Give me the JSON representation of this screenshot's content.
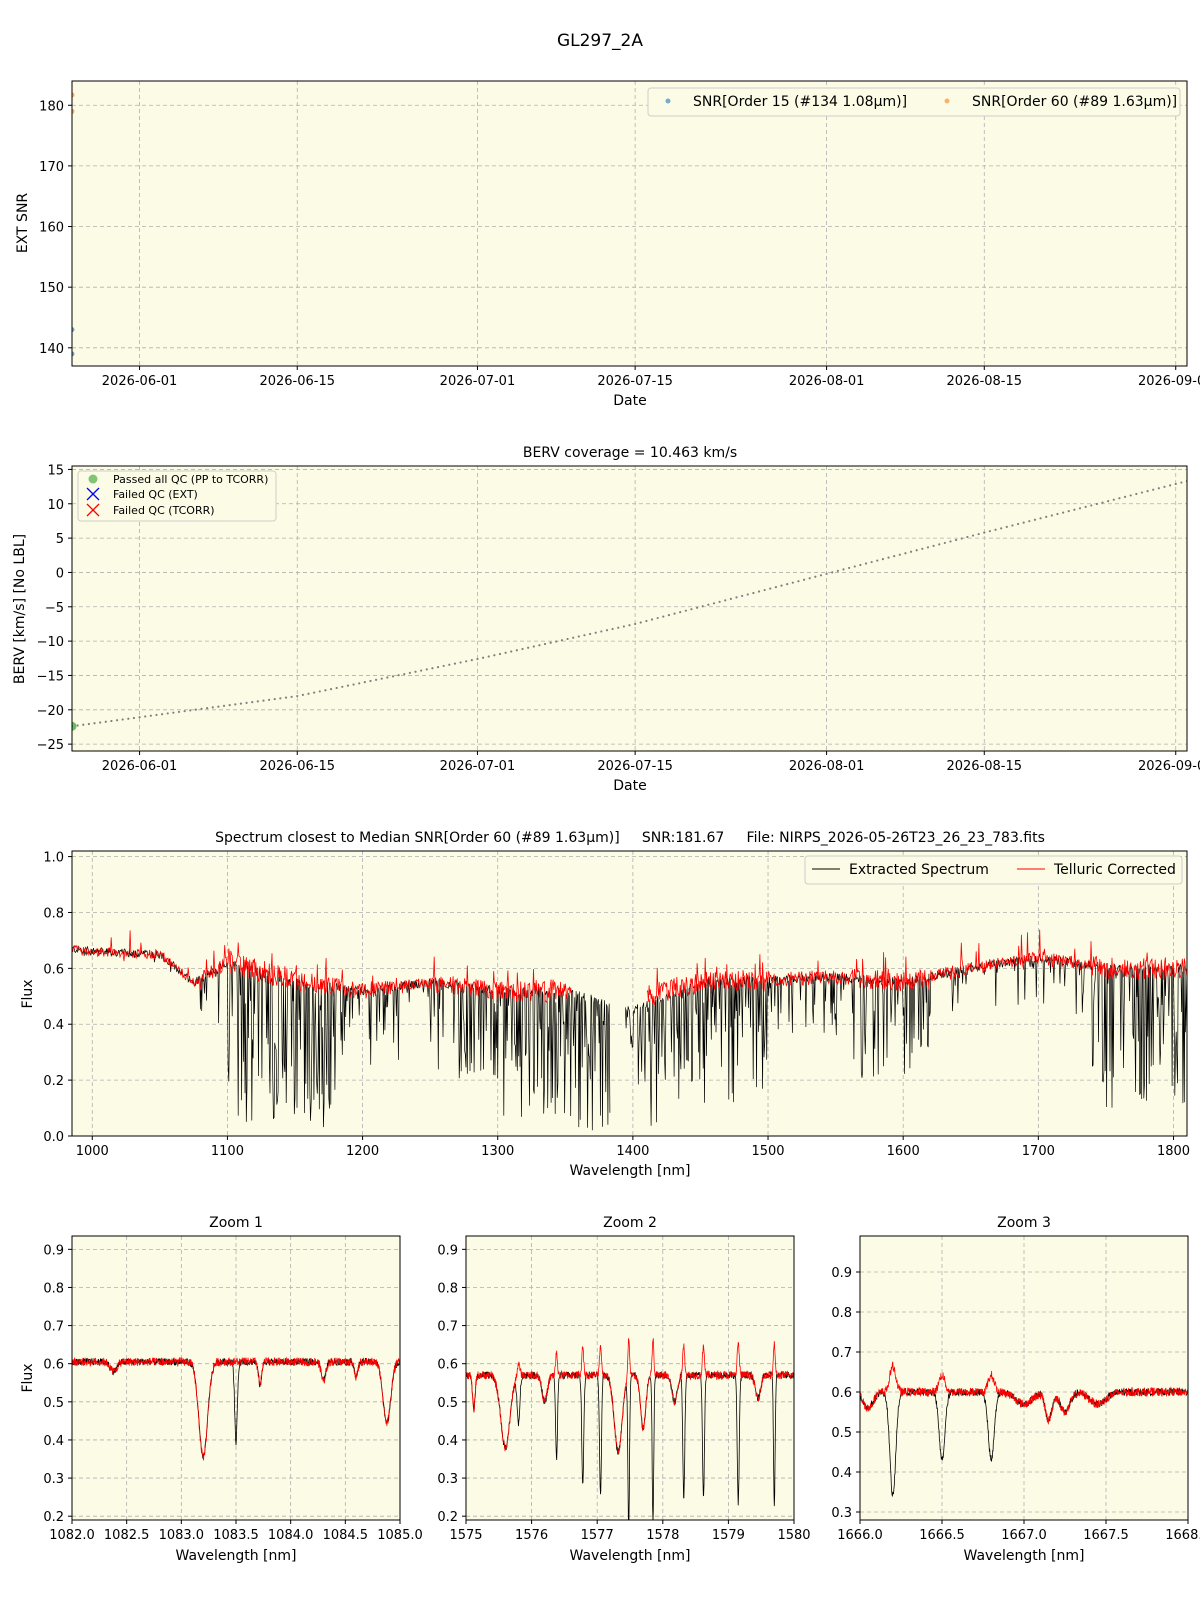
{
  "figure_title": "GL297_2A",
  "colors": {
    "panel_bg": "#fcfce6",
    "snr_order15": "#1f77b4",
    "snr_order60": "#ff7f0e",
    "berv_line": "#808080",
    "passed": "#2ca02c",
    "failed_ext": "#0000ff",
    "failed_tcorr": "#ff0000",
    "extracted": "#000000",
    "telluric": "#ff0000"
  },
  "chart_data": [
    {
      "id": "snr",
      "type": "scatter",
      "title": "",
      "xlabel": "Date",
      "ylabel": "EXT SNR",
      "xlim": [
        "2026-05-26",
        "2026-09-02"
      ],
      "ylim": [
        137,
        184
      ],
      "xticks": [
        "2026-06-01",
        "2026-06-15",
        "2026-07-01",
        "2026-07-15",
        "2026-08-01",
        "2026-08-15",
        "2026-09-01"
      ],
      "yticks": [
        140,
        150,
        160,
        170,
        180
      ],
      "grid": true,
      "legend_position": "top-right",
      "series": [
        {
          "name": "SNR[Order 15 (#134 1.08μm)]",
          "x": [
            "2026-05-26",
            "2026-05-26"
          ],
          "y": [
            143.0,
            139.0
          ]
        },
        {
          "name": "SNR[Order 60 (#89 1.63μm)]",
          "x": [
            "2026-05-26",
            "2026-05-26"
          ],
          "y": [
            181.7,
            179.0
          ]
        }
      ]
    },
    {
      "id": "berv",
      "type": "line",
      "title": "BERV coverage = 10.463 km/s",
      "xlabel": "Date",
      "ylabel": "BERV [km/s]  [No LBL]",
      "xlim": [
        "2026-05-26",
        "2026-09-02"
      ],
      "ylim": [
        -26,
        15.5
      ],
      "xticks": [
        "2026-06-01",
        "2026-06-15",
        "2026-07-01",
        "2026-07-15",
        "2026-08-01",
        "2026-08-15",
        "2026-09-01"
      ],
      "yticks": [
        -25,
        -20,
        -15,
        -10,
        -5,
        0,
        5,
        10,
        15
      ],
      "grid": true,
      "legend_position": "top-left",
      "legend": [
        "Passed all QC (PP to TCORR)",
        "Failed QC (EXT)",
        "Failed QC (TCORR)"
      ],
      "berv_curve": {
        "x": [
          "2026-05-26",
          "2026-06-15",
          "2026-07-01",
          "2026-07-15",
          "2026-08-01",
          "2026-08-15",
          "2026-09-02"
        ],
        "y": [
          -22.4,
          -18.0,
          -12.6,
          -7.5,
          -0.2,
          5.8,
          13.3
        ]
      },
      "passed_points": {
        "x": [
          "2026-05-26"
        ],
        "y": [
          -22.4
        ]
      }
    },
    {
      "id": "spectrum",
      "type": "line",
      "title": "Spectrum closest to Median SNR[Order 60 (#89 1.63μm)]     SNR:181.67     File: NIRPS_2026-05-26T23_26_23_783.fits",
      "xlabel": "Wavelength [nm]",
      "ylabel": "Flux",
      "xlim": [
        985,
        1810
      ],
      "ylim": [
        0.0,
        1.02
      ],
      "xticks": [
        1000,
        1100,
        1200,
        1300,
        1400,
        1500,
        1600,
        1700,
        1800
      ],
      "yticks": [
        0.0,
        0.2,
        0.4,
        0.6,
        0.8,
        1.0
      ],
      "grid": true,
      "legend_position": "top-right",
      "series": [
        {
          "name": "Extracted Spectrum",
          "x": [
            985,
            1000,
            1050,
            1075,
            1100,
            1150,
            1200,
            1250,
            1300,
            1350,
            1400,
            1450,
            1500,
            1550,
            1600,
            1650,
            1700,
            1750,
            1810
          ],
          "y": [
            0.67,
            0.66,
            0.65,
            0.55,
            0.62,
            0.55,
            0.52,
            0.55,
            0.52,
            0.52,
            0.45,
            0.55,
            0.56,
            0.57,
            0.55,
            0.6,
            0.64,
            0.6,
            0.6
          ]
        },
        {
          "name": "Telluric Corrected",
          "x": [
            985,
            1000,
            1050,
            1075,
            1100,
            1150,
            1200,
            1250,
            1300,
            1350,
            1410,
            1450,
            1500,
            1550,
            1600,
            1650,
            1700,
            1750,
            1810
          ],
          "y": [
            0.67,
            0.66,
            0.65,
            0.55,
            0.62,
            0.56,
            0.52,
            0.55,
            0.52,
            0.52,
            0.5,
            0.55,
            0.56,
            0.57,
            0.55,
            0.6,
            0.64,
            0.6,
            0.6
          ]
        }
      ]
    },
    {
      "id": "zoom1",
      "type": "line",
      "title": "Zoom 1",
      "xlabel": "Wavelength [nm]",
      "ylabel": "Flux",
      "xlim": [
        1082.0,
        1085.0
      ],
      "ylim": [
        0.19,
        0.935
      ],
      "xticks": [
        1082.0,
        1082.5,
        1083.0,
        1083.5,
        1084.0,
        1084.5,
        1085.0
      ],
      "yticks": [
        0.2,
        0.3,
        0.4,
        0.5,
        0.6,
        0.7,
        0.8,
        0.9
      ],
      "grid": true,
      "continuum": 0.605,
      "lines": [
        {
          "x": 1082.38,
          "depth": 0.025,
          "width": 0.03
        },
        {
          "x": 1083.2,
          "depth": 0.25,
          "width": 0.04
        },
        {
          "x": 1083.5,
          "depth": 0.21,
          "width": 0.012
        },
        {
          "x": 1083.72,
          "depth": 0.06,
          "width": 0.015
        },
        {
          "x": 1084.3,
          "depth": 0.05,
          "width": 0.02
        },
        {
          "x": 1084.6,
          "depth": 0.04,
          "width": 0.015
        },
        {
          "x": 1084.88,
          "depth": 0.16,
          "width": 0.035
        }
      ],
      "series": [
        {
          "name": "Extracted Spectrum"
        },
        {
          "name": "Telluric Corrected"
        }
      ]
    },
    {
      "id": "zoom2",
      "type": "line",
      "title": "Zoom 2",
      "xlabel": "Wavelength [nm]",
      "ylabel": "",
      "xlim": [
        1575,
        1580
      ],
      "ylim": [
        0.19,
        0.935
      ],
      "xticks": [
        1575,
        1576,
        1577,
        1578,
        1579,
        1580
      ],
      "yticks": [
        0.2,
        0.3,
        0.4,
        0.5,
        0.6,
        0.7,
        0.8,
        0.9
      ],
      "grid": true,
      "continuum": 0.57,
      "lines": [
        {
          "x": 1575.12,
          "depth": 0.09,
          "width": 0.02
        },
        {
          "x": 1575.6,
          "depth": 0.19,
          "width": 0.07
        },
        {
          "x": 1575.8,
          "depth": 0.13,
          "width": 0.02
        },
        {
          "x": 1576.2,
          "depth": 0.07,
          "width": 0.04
        },
        {
          "x": 1576.38,
          "depth": 0.22,
          "width": 0.015
        },
        {
          "x": 1576.78,
          "depth": 0.29,
          "width": 0.015
        },
        {
          "x": 1577.05,
          "depth": 0.32,
          "width": 0.015
        },
        {
          "x": 1577.32,
          "depth": 0.2,
          "width": 0.06
        },
        {
          "x": 1577.48,
          "depth": 0.4,
          "width": 0.012
        },
        {
          "x": 1577.7,
          "depth": 0.14,
          "width": 0.04
        },
        {
          "x": 1577.85,
          "depth": 0.39,
          "width": 0.012
        },
        {
          "x": 1578.18,
          "depth": 0.07,
          "width": 0.04
        },
        {
          "x": 1578.32,
          "depth": 0.32,
          "width": 0.015
        },
        {
          "x": 1578.62,
          "depth": 0.32,
          "width": 0.015
        },
        {
          "x": 1579.15,
          "depth": 0.34,
          "width": 0.015
        },
        {
          "x": 1579.45,
          "depth": 0.06,
          "width": 0.04
        },
        {
          "x": 1579.7,
          "depth": 0.35,
          "width": 0.012
        }
      ],
      "series": [
        {
          "name": "Extracted Spectrum"
        },
        {
          "name": "Telluric Corrected"
        }
      ]
    },
    {
      "id": "zoom3",
      "type": "line",
      "title": "Zoom 3",
      "xlabel": "Wavelength [nm]",
      "ylabel": "",
      "xlim": [
        1666.0,
        1668.0
      ],
      "ylim": [
        0.28,
        0.99
      ],
      "xticks": [
        1666.0,
        1666.5,
        1667.0,
        1667.5,
        1668.0
      ],
      "yticks": [
        0.3,
        0.4,
        0.5,
        0.6,
        0.7,
        0.8,
        0.9
      ],
      "grid": true,
      "continuum": 0.6,
      "lines": [
        {
          "x": 1666.05,
          "depth": 0.04,
          "width": 0.03
        },
        {
          "x": 1666.2,
          "depth": 0.26,
          "width": 0.018
        },
        {
          "x": 1666.5,
          "depth": 0.17,
          "width": 0.018
        },
        {
          "x": 1666.8,
          "depth": 0.17,
          "width": 0.018
        },
        {
          "x": 1667.0,
          "depth": 0.03,
          "width": 0.05
        },
        {
          "x": 1667.15,
          "depth": 0.07,
          "width": 0.02
        },
        {
          "x": 1667.25,
          "depth": 0.05,
          "width": 0.03
        },
        {
          "x": 1667.45,
          "depth": 0.03,
          "width": 0.05
        }
      ],
      "series": [
        {
          "name": "Extracted Spectrum"
        },
        {
          "name": "Telluric Corrected"
        }
      ]
    }
  ]
}
